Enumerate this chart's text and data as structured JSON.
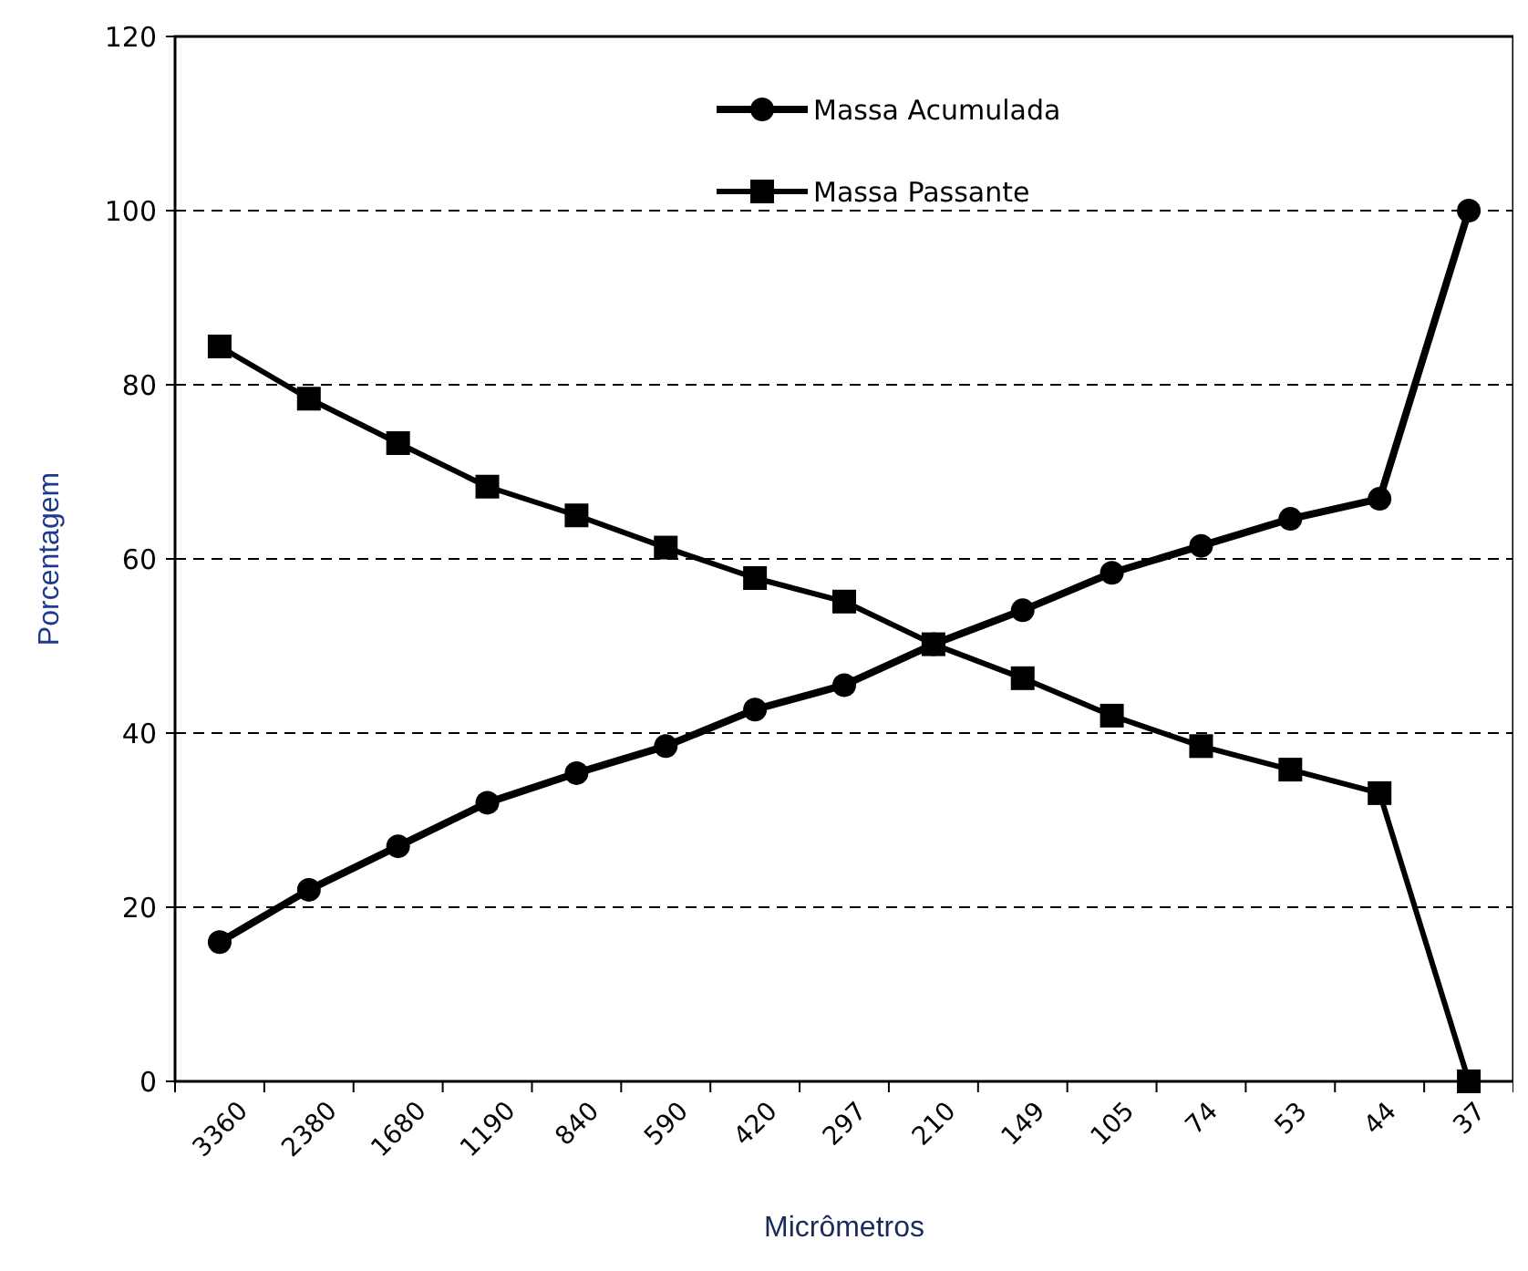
{
  "chart_data": {
    "type": "line",
    "xlabel": "Micrômetros",
    "ylabel": "Porcentagem",
    "categories": [
      "3360",
      "2380",
      "1680",
      "1190",
      "840",
      "590",
      "420",
      "297",
      "210",
      "149",
      "105",
      "74",
      "53",
      "44",
      "37"
    ],
    "series": [
      {
        "name": "Massa Acumulada",
        "color": "#000000",
        "marker": "circle",
        "values": [
          16,
          22,
          27,
          32,
          35.4,
          38.5,
          42.7,
          45.5,
          50.2,
          54.1,
          58.4,
          61.5,
          64.6,
          66.9,
          100
        ]
      },
      {
        "name": "Massa Passante",
        "color": "#000000",
        "marker": "square",
        "values": [
          84.4,
          78.4,
          73.3,
          68.3,
          65,
          61.3,
          57.8,
          55.1,
          50.2,
          46.3,
          42,
          38.5,
          35.8,
          33.1,
          0
        ]
      }
    ],
    "ylim": [
      0,
      120
    ],
    "yticks": [
      0,
      20,
      40,
      60,
      80,
      100,
      120
    ],
    "grid": "y",
    "legend": "top",
    "line_style": "solid"
  }
}
